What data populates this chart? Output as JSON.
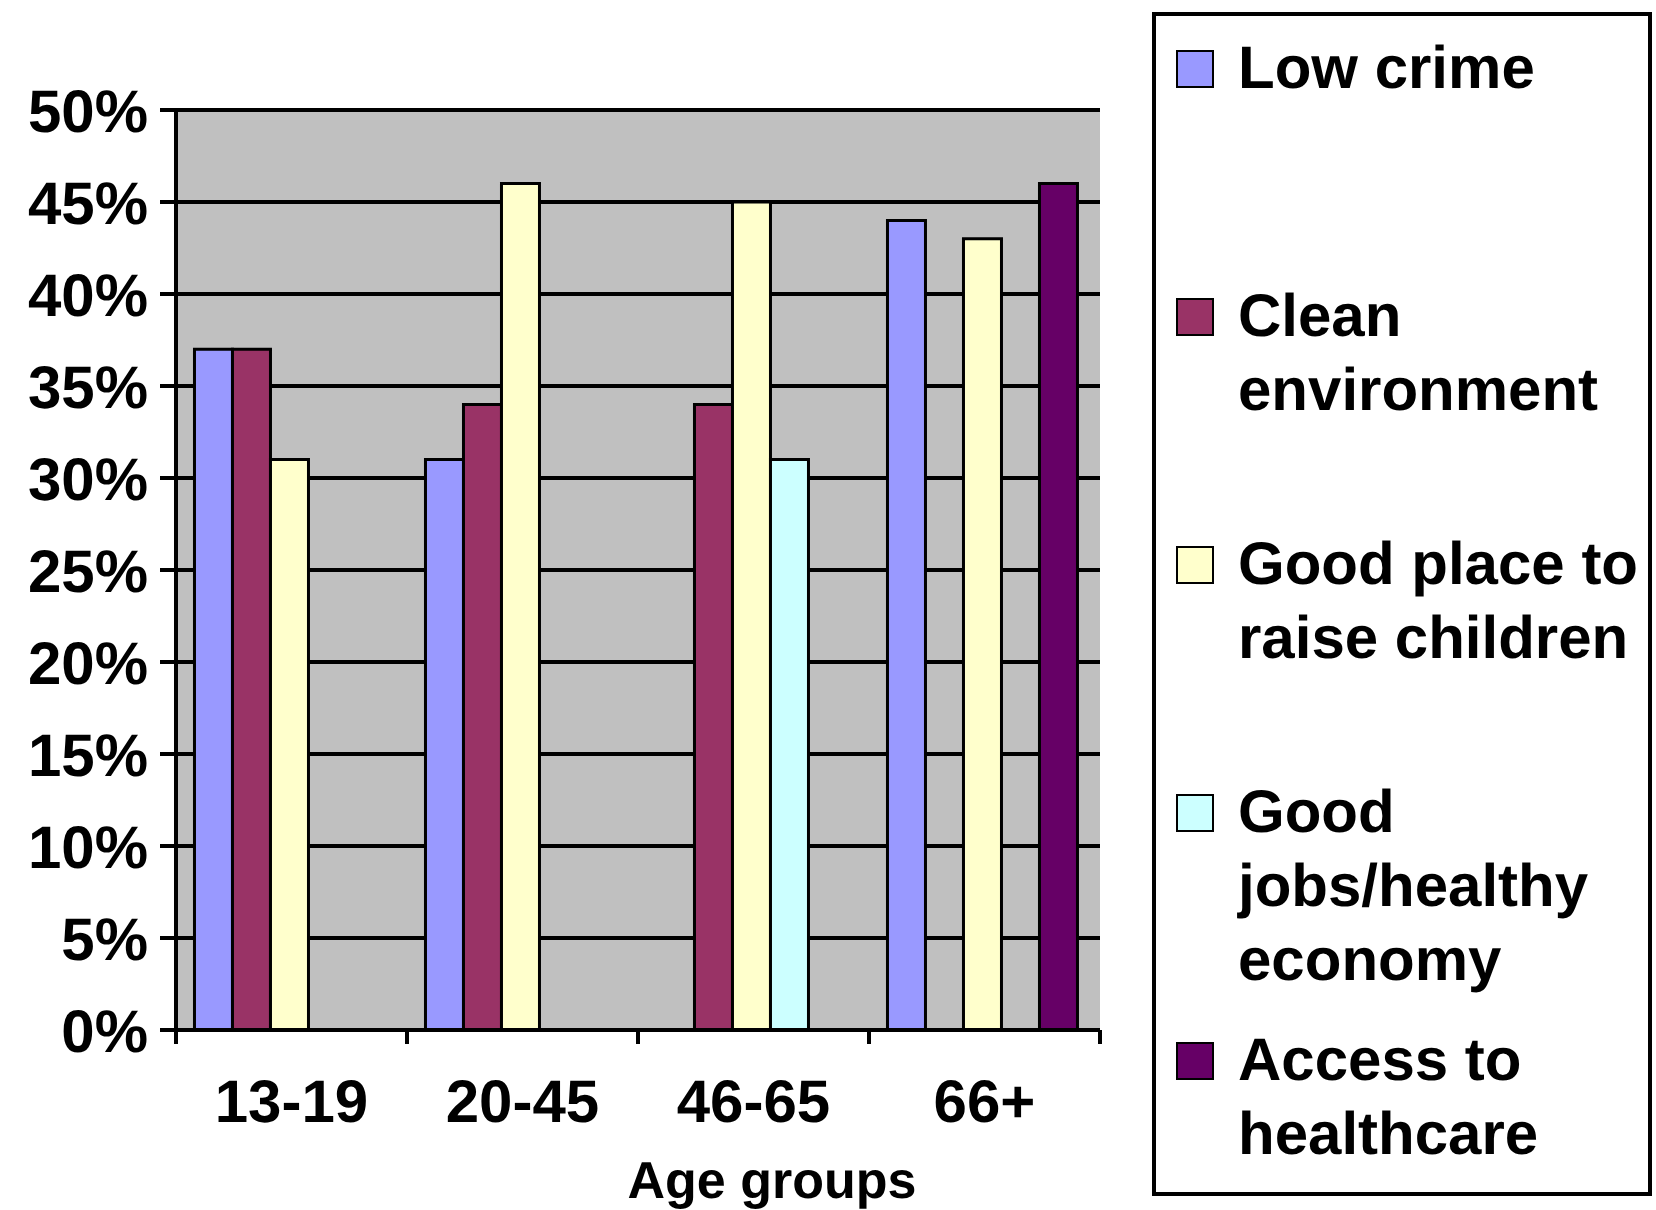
{
  "chart_data": {
    "type": "bar",
    "xlabel": "Age groups",
    "categories": [
      "13-19",
      "20-45",
      "46-65",
      "66+"
    ],
    "series": [
      {
        "name": "Low crime",
        "color": "#9999ff",
        "values": [
          37,
          31,
          null,
          44
        ]
      },
      {
        "name": "Clean environment",
        "color": "#993366",
        "values": [
          37,
          34,
          34,
          null
        ]
      },
      {
        "name": "Good place to raise children",
        "color": "#ffffcc",
        "values": [
          31,
          46,
          45,
          43
        ]
      },
      {
        "name": "Good jobs/healthy economy",
        "color": "#ccffff",
        "values": [
          null,
          null,
          31,
          null
        ]
      },
      {
        "name": "Access to healthcare",
        "color": "#660066",
        "values": [
          null,
          null,
          null,
          46
        ]
      }
    ],
    "ylim": [
      0,
      50
    ],
    "yticks": [
      {
        "value": 0,
        "label": "0%"
      },
      {
        "value": 5,
        "label": "5%"
      },
      {
        "value": 10,
        "label": "10%"
      },
      {
        "value": 15,
        "label": "15%"
      },
      {
        "value": 20,
        "label": "20%"
      },
      {
        "value": 25,
        "label": "25%"
      },
      {
        "value": 30,
        "label": "30%"
      },
      {
        "value": 35,
        "label": "35%"
      },
      {
        "value": 40,
        "label": "40%"
      },
      {
        "value": 45,
        "label": "45%"
      },
      {
        "value": 50,
        "label": "50%"
      }
    ],
    "grid": "y",
    "legend": "right"
  }
}
